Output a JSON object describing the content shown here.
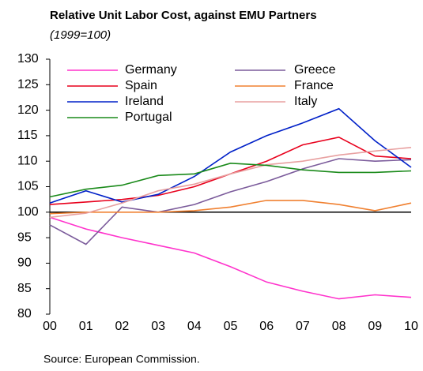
{
  "chart_data": {
    "type": "line",
    "title": "Relative Unit Labor Cost, against EMU Partners",
    "subtitle": "(1999=100)",
    "source": "Source: European Commission.",
    "categories": [
      "00",
      "01",
      "02",
      "03",
      "04",
      "05",
      "06",
      "07",
      "08",
      "09",
      "10"
    ],
    "series": [
      {
        "name": "Germany",
        "color": "#ff33cc",
        "values": [
          99,
          96.7,
          95,
          93.5,
          92,
          89.3,
          86.3,
          84.5,
          83,
          83.8,
          83.3
        ]
      },
      {
        "name": "Greece",
        "color": "#7b5b9b",
        "values": [
          97.5,
          93.7,
          101,
          100,
          101.5,
          104,
          106,
          108.5,
          110.5,
          110,
          110.3
        ]
      },
      {
        "name": "Spain",
        "color": "#e8001c",
        "values": [
          101.5,
          102,
          102.5,
          103.3,
          105,
          107.5,
          110,
          113.2,
          114.7,
          111,
          110.5
        ]
      },
      {
        "name": "France",
        "color": "#f08030",
        "values": [
          99.7,
          100,
          100,
          100,
          100.3,
          101,
          102.3,
          102.3,
          101.5,
          100.3,
          101.8
        ]
      },
      {
        "name": "Ireland",
        "color": "#0020c8",
        "values": [
          101.8,
          104.2,
          102,
          103.5,
          107,
          111.8,
          115,
          117.5,
          120.3,
          114,
          108.8
        ]
      },
      {
        "name": "Italy",
        "color": "#e8a0a0",
        "values": [
          99,
          99.8,
          101.8,
          104.2,
          105.5,
          107.5,
          109.3,
          110,
          111.2,
          112,
          112.7
        ]
      },
      {
        "name": "Portugal",
        "color": "#1a8a1a",
        "values": [
          103,
          104.5,
          105.3,
          107.2,
          107.5,
          109.6,
          109.2,
          108.3,
          107.8,
          107.8,
          108.1
        ]
      }
    ],
    "ylim": [
      80,
      130
    ],
    "yticks": [
      80,
      85,
      90,
      95,
      100,
      105,
      110,
      115,
      120,
      125,
      130
    ],
    "reference_line": 100,
    "grid": false,
    "legend_position": "top"
  }
}
